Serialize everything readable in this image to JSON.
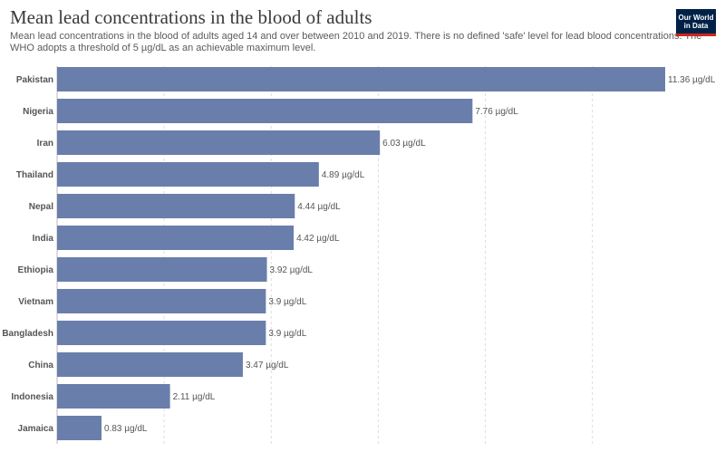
{
  "header": {
    "title": "Mean lead concentrations in the blood of adults",
    "subtitle": "Mean lead concentrations in the blood of adults aged 14 and over between 2010 and 2019. There is no defined 'safe' level for lead blood concentrations. The WHO adopts a threshold of 5 µg/dL as an achievable maximum level."
  },
  "logo": {
    "line1": "Our World",
    "line2": "in Data",
    "bg_color": "#002147",
    "accent_color": "#ce261e"
  },
  "chart_data": {
    "type": "bar",
    "orientation": "horizontal",
    "unit": "µg/dL",
    "categories": [
      "Pakistan",
      "Nigeria",
      "Iran",
      "Thailand",
      "Nepal",
      "India",
      "Ethiopia",
      "Vietnam",
      "Bangladesh",
      "China",
      "Indonesia",
      "Jamaica"
    ],
    "values": [
      11.36,
      7.76,
      6.03,
      4.89,
      4.44,
      4.42,
      3.92,
      3.9,
      3.9,
      3.47,
      2.11,
      0.83
    ],
    "value_labels": [
      "11.36 µg/dL",
      "7.76 µg/dL",
      "6.03 µg/dL",
      "4.89 µg/dL",
      "4.44 µg/dL",
      "4.42 µg/dL",
      "3.92 µg/dL",
      "3.9 µg/dL",
      "3.9 µg/dL",
      "3.47 µg/dL",
      "2.11 µg/dL",
      "0.83 µg/dL"
    ],
    "xlim": [
      0,
      11.36
    ],
    "gridlines": [
      2,
      4,
      6,
      8,
      10
    ],
    "grid": true,
    "bar_color": "#6a7eab"
  }
}
